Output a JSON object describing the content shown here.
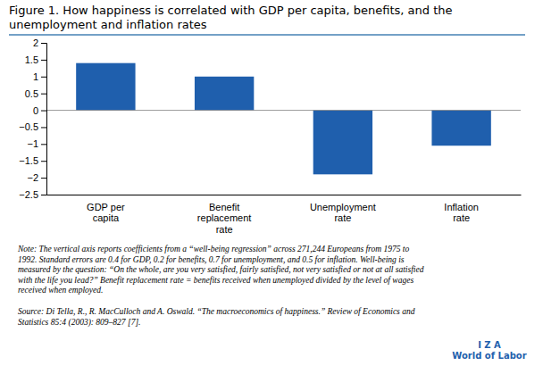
{
  "chart_data": {
    "type": "bar",
    "title": "Figure 1. How happiness is correlated with GDP per capita, benefits, and the\nunemployment and inflation rates",
    "categories": [
      "GDP per\ncapita",
      "Benefit\nreplacement\nrate",
      "Unemployment\nrate",
      "Inflation\nrate"
    ],
    "values": [
      1.4,
      1.0,
      -1.9,
      -1.05
    ],
    "color": "#1F5FAD",
    "ylim": [
      -2.5,
      2.0
    ],
    "yticks": [
      2,
      1.5,
      1,
      0.5,
      0,
      {
        "value": -0.5,
        "label": "−0.5"
      },
      {
        "value": -1,
        "label": "−1"
      },
      {
        "value": -1.5,
        "label": "−1.5"
      },
      {
        "value": -2,
        "label": "−2"
      },
      {
        "value": -2.5,
        "label": "−2.5"
      }
    ],
    "grid": false,
    "annotations": [
      "Note: The vertical axis reports coefficients from a “well-being regression” across 271,244 Europeans from 1975 to\n1992. Standard errors are 0.4 for GDP, 0.2 for benefits, 0.7 for unemployment, and 0.5 for inflation. Well-being is\nmeasured by the question: “On the whole, are you very satisfied, fairly satisfied, not very satisfied or not at all satisfied\nwith the life you lead?” Benefit replacement rate = benefits received when unemployed divided by the level of wages\nreceived when employed.",
      "Source: Di Tella, R., R. MacCulloch and A. Oswald. “The macroeconomics of happiness.” Review of Economics and\nStatistics 85:4 (2003): 809–827 [7].",
      "I Z A\nWorld of Labor"
    ]
  }
}
